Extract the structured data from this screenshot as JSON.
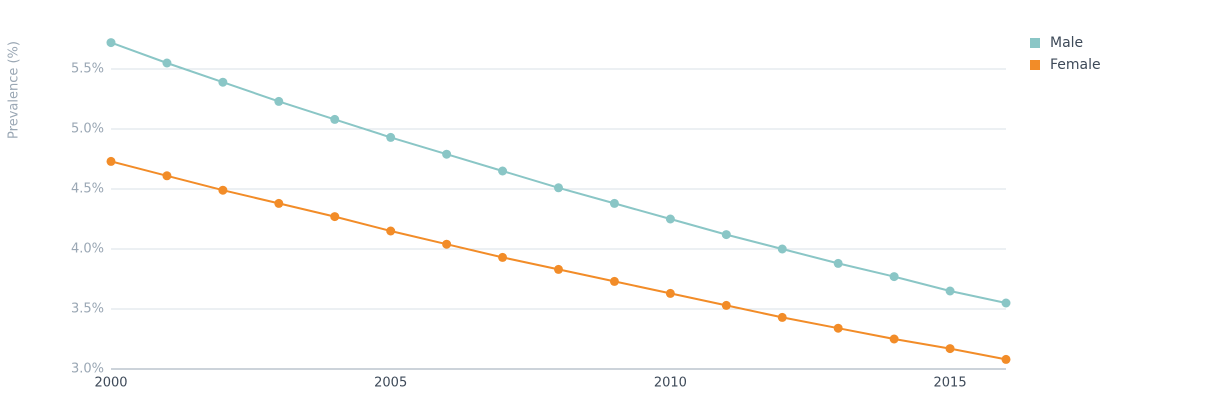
{
  "chart_data": {
    "type": "line",
    "y_label": "Prevalence (%)",
    "x": [
      2000,
      2001,
      2002,
      2003,
      2004,
      2005,
      2006,
      2007,
      2008,
      2009,
      2010,
      2011,
      2012,
      2013,
      2014,
      2015,
      2016
    ],
    "series": [
      {
        "name": "Male",
        "color": "#8ac6c6",
        "values": [
          5.72,
          5.55,
          5.39,
          5.23,
          5.08,
          4.93,
          4.79,
          4.65,
          4.51,
          4.38,
          4.25,
          4.12,
          4.0,
          3.88,
          3.77,
          3.65,
          3.55
        ]
      },
      {
        "name": "Female",
        "color": "#f28c28",
        "values": [
          4.73,
          4.61,
          4.49,
          4.38,
          4.27,
          4.15,
          4.04,
          3.93,
          3.83,
          3.73,
          3.63,
          3.53,
          3.43,
          3.34,
          3.25,
          3.17,
          3.08
        ]
      }
    ],
    "xlim": [
      2000,
      2016
    ],
    "xticks": [
      2000,
      2005,
      2010,
      2015
    ],
    "ylim": [
      3.0,
      5.75
    ],
    "yticks": [
      {
        "value": 3.0,
        "label": "3.0%"
      },
      {
        "value": 3.5,
        "label": "3.5%"
      },
      {
        "value": 4.0,
        "label": "4.0%"
      },
      {
        "value": 4.5,
        "label": "4.5%"
      },
      {
        "value": 5.0,
        "label": "5.0%"
      },
      {
        "value": 5.5,
        "label": "5.5%"
      }
    ],
    "grid": true,
    "legend": "top-right"
  }
}
